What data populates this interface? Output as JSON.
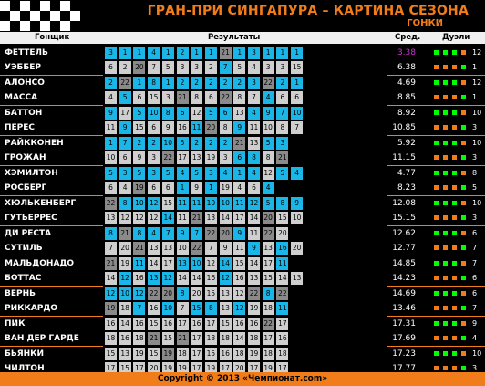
{
  "header": {
    "title": "ГРАН-ПРИ СИНГАПУРА – КАРТИНА СЕЗОНА",
    "subtitle": "ГОНКИ"
  },
  "columns": {
    "driver": "Гонщик",
    "results": "Результаты",
    "average": "Сред.",
    "duels": "Дуэли"
  },
  "colors": {
    "accent": "#f07c1a",
    "win": "#00ff00",
    "loss": "#f07c1a",
    "cell_ahead": "#1ab6e8",
    "cell_behind": "#cfcfcf",
    "cell_dnf": "#8a8a8a",
    "highlight": "#cc33cc"
  },
  "teams": [
    {
      "drivers": [
        {
          "name": "ФЕТТЕЛЬ",
          "average": "3.38",
          "highlight": true,
          "duels": 12,
          "results": [
            "3",
            "1",
            "1",
            "4",
            "1",
            "2",
            "1",
            "1",
            "21",
            "1",
            "3",
            "1",
            "1",
            "1"
          ],
          "status": [
            "a",
            "a",
            "a",
            "a",
            "a",
            "a",
            "a",
            "a",
            "d",
            "a",
            "a",
            "a",
            "a",
            "a"
          ]
        },
        {
          "name": "УЭББЕР",
          "average": "6.38",
          "duels": 1,
          "results": [
            "6",
            "2",
            "20",
            "7",
            "5",
            "3",
            "3",
            "2",
            "7",
            "5",
            "4",
            "3",
            "3",
            "15"
          ],
          "status": [
            "b",
            "b",
            "d",
            "b",
            "b",
            "b",
            "b",
            "b",
            "a",
            "b",
            "b",
            "b",
            "b",
            "b"
          ]
        }
      ]
    },
    {
      "drivers": [
        {
          "name": "АЛОНСО",
          "average": "4.69",
          "duels": 12,
          "results": [
            "2",
            "22",
            "1",
            "8",
            "1",
            "2",
            "2",
            "2",
            "2",
            "2",
            "3",
            "22",
            "2",
            "1"
          ],
          "status": [
            "a",
            "d",
            "a",
            "a",
            "a",
            "a",
            "a",
            "a",
            "a",
            "a",
            "a",
            "d",
            "a",
            "a"
          ]
        },
        {
          "name": "МАССА",
          "average": "8.85",
          "duels": 1,
          "results": [
            "4",
            "5",
            "6",
            "15",
            "3",
            "21",
            "8",
            "6",
            "22",
            "8",
            "7",
            "4",
            "6",
            "6"
          ],
          "status": [
            "b",
            "a",
            "b",
            "b",
            "b",
            "d",
            "b",
            "b",
            "d",
            "b",
            "b",
            "a",
            "b",
            "b"
          ]
        }
      ]
    },
    {
      "drivers": [
        {
          "name": "БАТТОН",
          "average": "8.92",
          "duels": 10,
          "results": [
            "9",
            "17",
            "5",
            "10",
            "8",
            "6",
            "12",
            "5",
            "6",
            "13",
            "4",
            "9",
            "7",
            "10"
          ],
          "status": [
            "a",
            "b",
            "a",
            "a",
            "a",
            "a",
            "b",
            "a",
            "a",
            "b",
            "a",
            "a",
            "a",
            "a"
          ]
        },
        {
          "name": "ПЕРЕС",
          "average": "10.85",
          "duels": 3,
          "results": [
            "11",
            "9",
            "15",
            "6",
            "9",
            "16",
            "11",
            "20",
            "8",
            "9",
            "11",
            "10",
            "8",
            "7"
          ],
          "status": [
            "b",
            "a",
            "b",
            "b",
            "b",
            "b",
            "a",
            "d",
            "b",
            "a",
            "b",
            "b",
            "b",
            "b"
          ]
        }
      ]
    },
    {
      "drivers": [
        {
          "name": "РАЙККОНЕН",
          "average": "5.92",
          "duels": 10,
          "results": [
            "1",
            "7",
            "2",
            "2",
            "10",
            "5",
            "2",
            "2",
            "2",
            "21",
            "13",
            "5",
            "3",
            ""
          ],
          "status": [
            "a",
            "a",
            "a",
            "a",
            "a",
            "a",
            "a",
            "a",
            "a",
            "d",
            "b",
            "a",
            "a",
            "n"
          ]
        },
        {
          "name": "ГРОЖАН",
          "average": "11.15",
          "duels": 3,
          "results": [
            "10",
            "6",
            "9",
            "3",
            "22",
            "17",
            "13",
            "19",
            "3",
            "6",
            "8",
            "8",
            "21",
            ""
          ],
          "status": [
            "b",
            "b",
            "b",
            "b",
            "d",
            "b",
            "b",
            "b",
            "b",
            "a",
            "a",
            "b",
            "d",
            "n"
          ]
        }
      ]
    },
    {
      "drivers": [
        {
          "name": "ХЭМИЛТОН",
          "average": "4.77",
          "duels": 8,
          "results": [
            "5",
            "3",
            "5",
            "3",
            "5",
            "4",
            "5",
            "3",
            "4",
            "1",
            "4",
            "12",
            "5",
            "4"
          ],
          "status": [
            "a",
            "a",
            "a",
            "a",
            "a",
            "a",
            "a",
            "a",
            "a",
            "a",
            "a",
            "b",
            "a",
            "a"
          ]
        },
        {
          "name": "РОСБЕРГ",
          "average": "8.23",
          "duels": 5,
          "results": [
            "6",
            "4",
            "19",
            "6",
            "6",
            "1",
            "9",
            "1",
            "19",
            "4",
            "6",
            "4",
            "",
            ""
          ],
          "status": [
            "b",
            "b",
            "d",
            "b",
            "b",
            "a",
            "b",
            "a",
            "b",
            "b",
            "b",
            "a",
            "n",
            "n"
          ]
        }
      ]
    },
    {
      "drivers": [
        {
          "name": "ХЮЛЬКЕНБЕРГ",
          "average": "12.08",
          "duels": 10,
          "results": [
            "22",
            "8",
            "10",
            "12",
            "15",
            "11",
            "11",
            "10",
            "10",
            "11",
            "12",
            "5",
            "8",
            "9"
          ],
          "status": [
            "d",
            "a",
            "a",
            "a",
            "b",
            "a",
            "a",
            "a",
            "a",
            "a",
            "a",
            "a",
            "a",
            "a"
          ]
        },
        {
          "name": "ГУТЬЕРРЕС",
          "average": "15.15",
          "duels": 3,
          "results": [
            "13",
            "12",
            "12",
            "12",
            "14",
            "11",
            "21",
            "13",
            "14",
            "17",
            "14",
            "20",
            "15",
            "10"
          ],
          "status": [
            "b",
            "b",
            "b",
            "b",
            "a",
            "b",
            "d",
            "b",
            "b",
            "b",
            "b",
            "d",
            "b",
            "b"
          ]
        }
      ]
    },
    {
      "drivers": [
        {
          "name": "ДИ РЕСТА",
          "average": "12.62",
          "duels": 6,
          "results": [
            "8",
            "21",
            "8",
            "4",
            "7",
            "9",
            "7",
            "22",
            "20",
            "9",
            "11",
            "22",
            "20",
            ""
          ],
          "status": [
            "a",
            "d",
            "a",
            "a",
            "a",
            "a",
            "a",
            "d",
            "d",
            "a",
            "b",
            "d",
            "b",
            "n"
          ]
        },
        {
          "name": "СУТИЛЬ",
          "average": "12.77",
          "duels": 7,
          "results": [
            "7",
            "20",
            "21",
            "13",
            "13",
            "10",
            "22",
            "7",
            "9",
            "11",
            "9",
            "13",
            "16",
            "20"
          ],
          "status": [
            "b",
            "b",
            "d",
            "b",
            "b",
            "b",
            "d",
            "b",
            "b",
            "b",
            "a",
            "b",
            "a",
            "b"
          ]
        }
      ]
    },
    {
      "drivers": [
        {
          "name": "МАЛЬДОНАДО",
          "average": "14.85",
          "duels": 7,
          "results": [
            "21",
            "19",
            "11",
            "14",
            "17",
            "13",
            "10",
            "12",
            "14",
            "15",
            "14",
            "17",
            "11",
            ""
          ],
          "status": [
            "d",
            "b",
            "a",
            "b",
            "b",
            "a",
            "a",
            "b",
            "a",
            "b",
            "b",
            "b",
            "a",
            "n"
          ]
        },
        {
          "name": "БОТТАС",
          "average": "14.23",
          "duels": 6,
          "results": [
            "14",
            "12",
            "16",
            "13",
            "12",
            "14",
            "14",
            "16",
            "12",
            "16",
            "13",
            "15",
            "14",
            "13"
          ],
          "status": [
            "b",
            "a",
            "b",
            "a",
            "a",
            "b",
            "b",
            "b",
            "a",
            "b",
            "b",
            "b",
            "b",
            "b"
          ]
        }
      ]
    },
    {
      "drivers": [
        {
          "name": "ВЕРНЬ",
          "average": "14.69",
          "duels": 6,
          "results": [
            "12",
            "10",
            "12",
            "22",
            "20",
            "8",
            "20",
            "15",
            "13",
            "12",
            "22",
            "8",
            "22",
            ""
          ],
          "status": [
            "a",
            "a",
            "a",
            "d",
            "d",
            "a",
            "b",
            "b",
            "b",
            "b",
            "d",
            "a",
            "d",
            "n"
          ]
        },
        {
          "name": "РИККАРДО",
          "average": "13.46",
          "duels": 7,
          "results": [
            "19",
            "18",
            "7",
            "16",
            "10",
            "7",
            "15",
            "8",
            "13",
            "12",
            "19",
            "18",
            "11",
            ""
          ],
          "status": [
            "d",
            "b",
            "a",
            "b",
            "a",
            "b",
            "a",
            "a",
            "b",
            "a",
            "b",
            "b",
            "a",
            "n"
          ]
        }
      ]
    },
    {
      "drivers": [
        {
          "name": "ПИК",
          "average": "17.31",
          "duels": 9,
          "results": [
            "16",
            "14",
            "16",
            "15",
            "16",
            "17",
            "16",
            "17",
            "15",
            "16",
            "16",
            "22",
            "17",
            ""
          ],
          "status": [
            "b",
            "b",
            "b",
            "b",
            "b",
            "b",
            "b",
            "b",
            "b",
            "b",
            "b",
            "d",
            "b",
            "n"
          ]
        },
        {
          "name": "ВАН ДЕР ГАРДЕ",
          "average": "17.69",
          "duels": 4,
          "results": [
            "18",
            "16",
            "18",
            "21",
            "15",
            "21",
            "17",
            "18",
            "18",
            "14",
            "18",
            "17",
            "16",
            ""
          ],
          "status": [
            "b",
            "b",
            "b",
            "d",
            "b",
            "d",
            "b",
            "b",
            "b",
            "b",
            "b",
            "b",
            "b",
            "n"
          ]
        }
      ]
    },
    {
      "drivers": [
        {
          "name": "БЬЯНКИ",
          "average": "17.23",
          "duels": 10,
          "results": [
            "15",
            "13",
            "19",
            "15",
            "19",
            "18",
            "17",
            "15",
            "16",
            "18",
            "19",
            "18",
            "18",
            ""
          ],
          "status": [
            "b",
            "b",
            "b",
            "b",
            "d",
            "b",
            "b",
            "b",
            "b",
            "b",
            "b",
            "b",
            "b",
            "n"
          ]
        },
        {
          "name": "ЧИЛТОН",
          "average": "17.77",
          "duels": 3,
          "results": [
            "17",
            "15",
            "17",
            "20",
            "19",
            "19",
            "17",
            "19",
            "17",
            "20",
            "17",
            "19",
            "17",
            ""
          ],
          "status": [
            "b",
            "b",
            "b",
            "b",
            "b",
            "b",
            "b",
            "b",
            "b",
            "b",
            "b",
            "b",
            "b",
            "n"
          ]
        }
      ]
    }
  ],
  "footer": {
    "text": "Copyright © 2013 «Чемпионат.com»"
  }
}
